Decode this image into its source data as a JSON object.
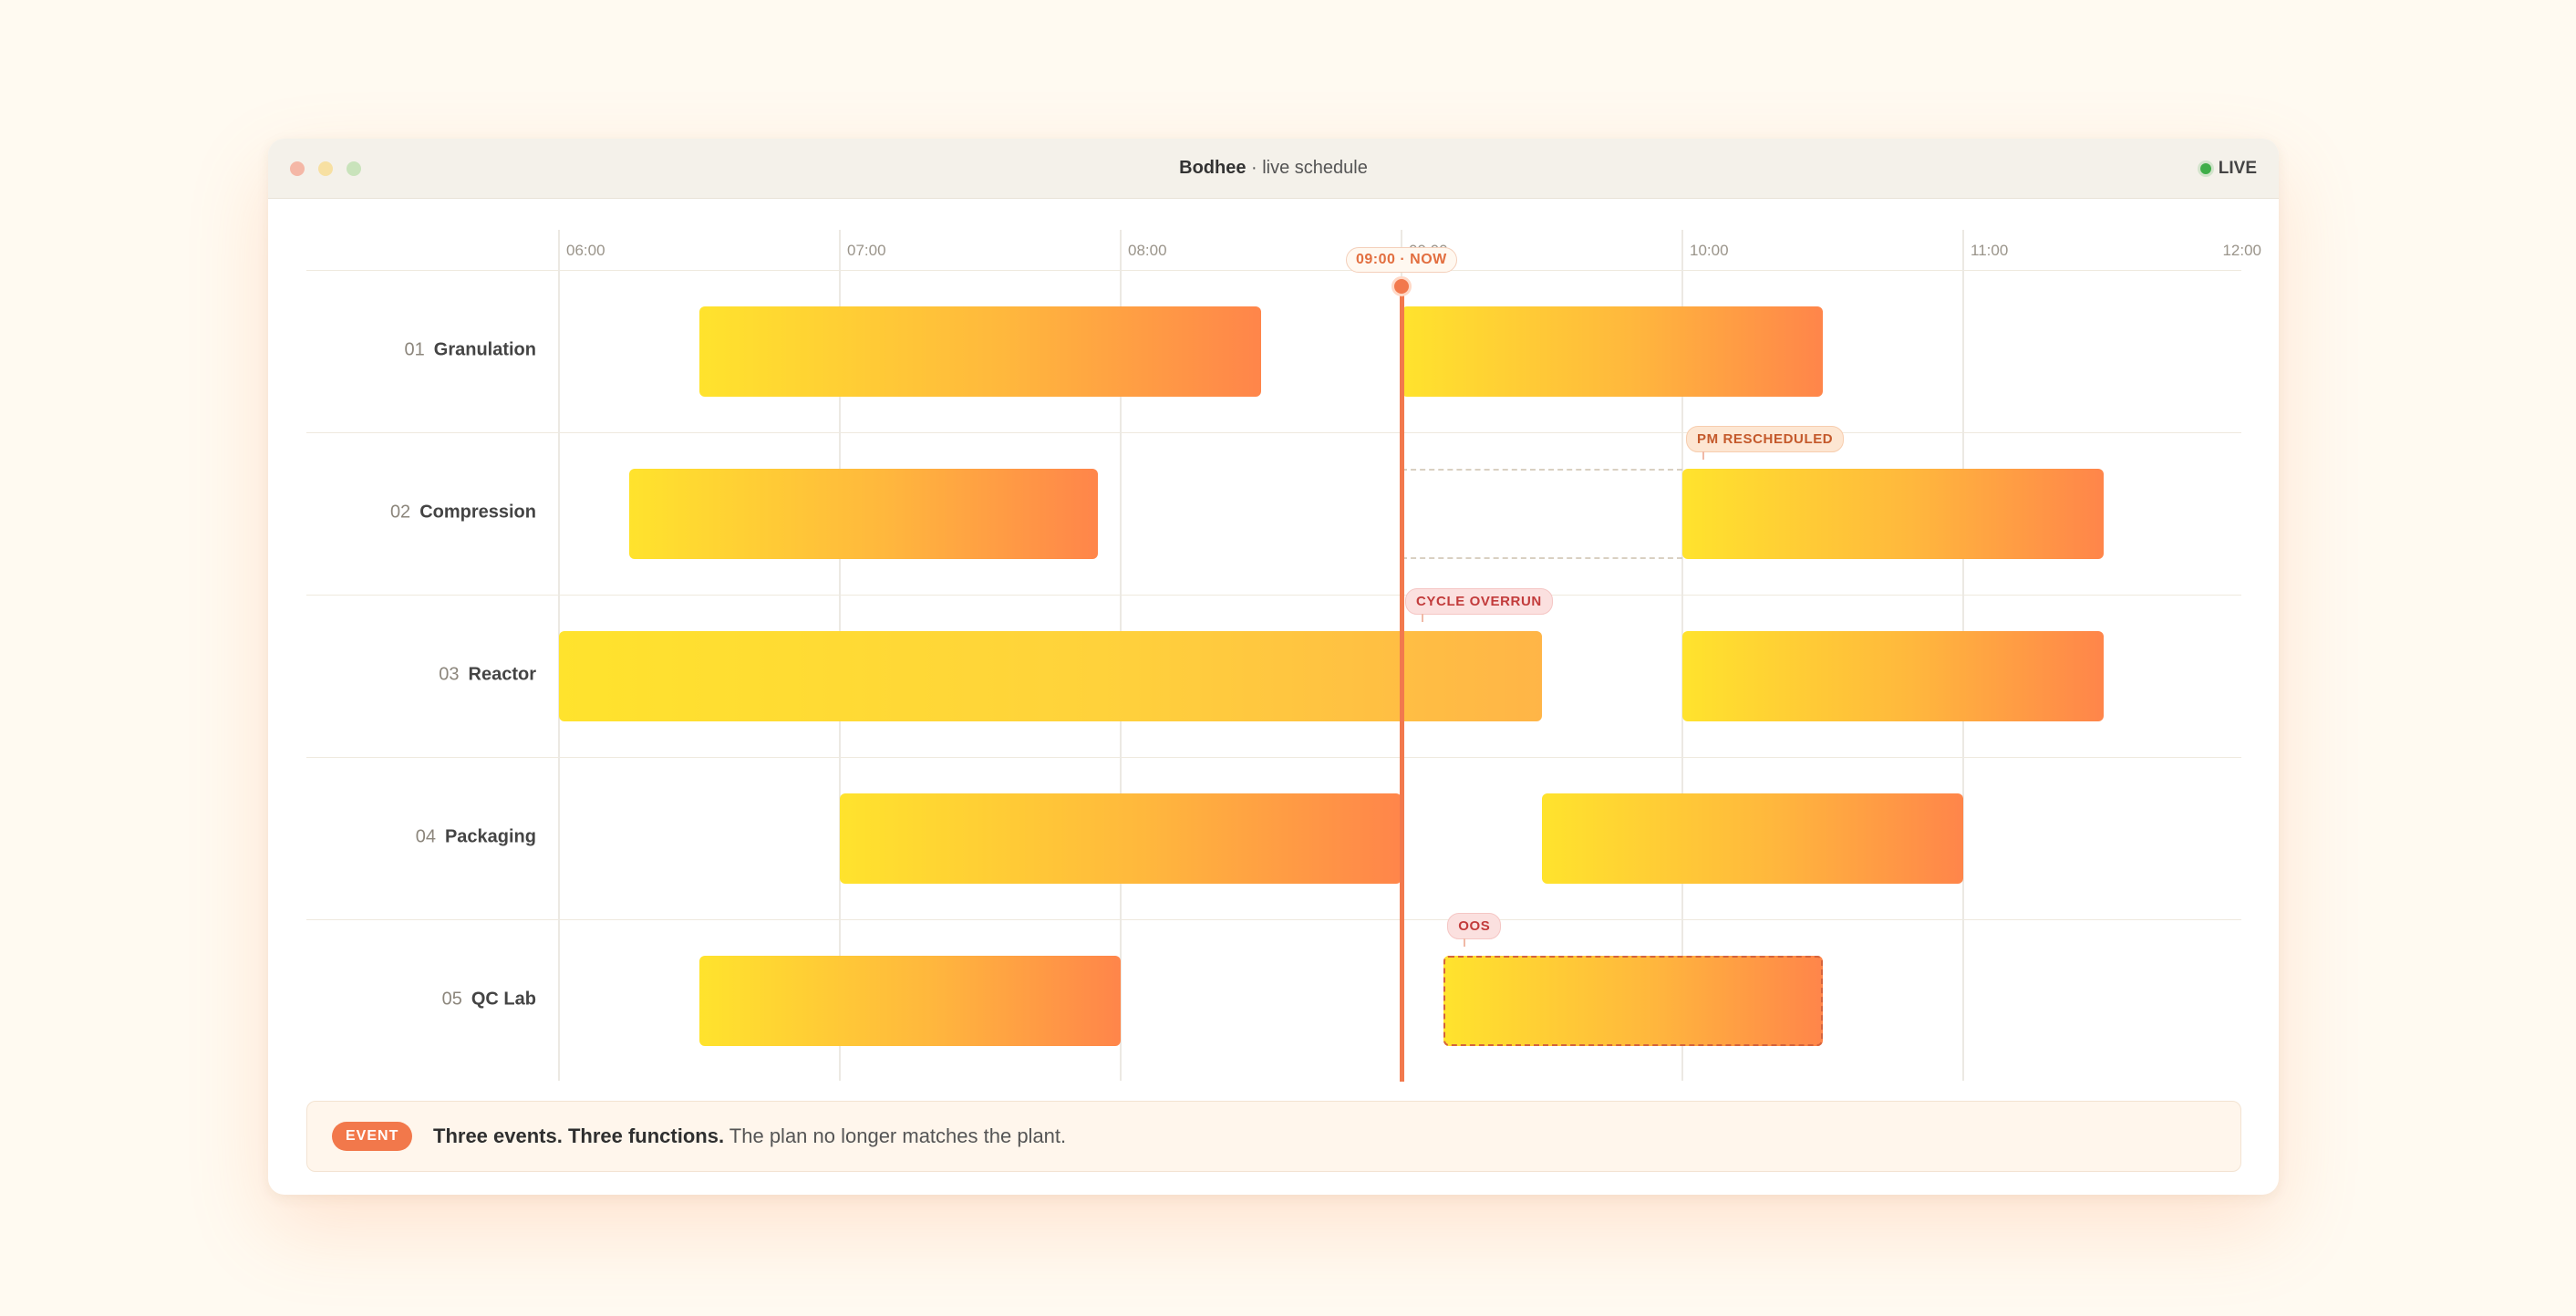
{
  "window": {
    "title_app": "Bodhee",
    "title_rest": " · live schedule",
    "live_label": "LIVE"
  },
  "timeline": {
    "ticks": [
      "06:00",
      "07:00",
      "08:00",
      "09:00",
      "10:00",
      "11:00",
      "12:00"
    ],
    "now_label": "09:00 · NOW",
    "now_hour": 9.0
  },
  "rows": [
    {
      "num": "01",
      "name": "Granulation"
    },
    {
      "num": "02",
      "name": "Compression"
    },
    {
      "num": "03",
      "name": "Reactor"
    },
    {
      "num": "04",
      "name": "Packaging"
    },
    {
      "num": "05",
      "name": "QC Lab"
    }
  ],
  "tasks": [
    {
      "row": 0,
      "start": 6.5,
      "end": 8.5
    },
    {
      "row": 0,
      "start": 9.0,
      "end": 10.5
    },
    {
      "row": 1,
      "start": 6.25,
      "end": 7.92
    },
    {
      "row": 1,
      "start": 10.0,
      "end": 11.5
    },
    {
      "row": 2,
      "start": 6.0,
      "end": 9.5,
      "style": "long"
    },
    {
      "row": 2,
      "start": 10.0,
      "end": 11.5
    },
    {
      "row": 3,
      "start": 7.0,
      "end": 9.0
    },
    {
      "row": 3,
      "start": 9.5,
      "end": 11.0
    },
    {
      "row": 4,
      "start": 6.5,
      "end": 8.0
    },
    {
      "row": 4,
      "start": 9.15,
      "end": 10.5,
      "style": "dashed"
    }
  ],
  "ghosts": [
    {
      "row": 1,
      "start": 9.0,
      "end": 10.0
    }
  ],
  "events": [
    {
      "row": 1,
      "hour": 10.0,
      "label": "PM RESCHEDULED",
      "tone": "orange"
    },
    {
      "row": 2,
      "hour": 9.0,
      "label": "CYCLE OVERRUN",
      "tone": "red"
    },
    {
      "row": 4,
      "hour": 9.15,
      "label": "OOS",
      "tone": "red"
    }
  ],
  "footer": {
    "pill": "EVENT",
    "headline": "Three events. Three functions.",
    "body": " The plan no longer matches the plant."
  },
  "colors": {
    "accent": "#f2794d",
    "bar_start": "#ffe32d",
    "bar_end": "#ff854a",
    "live": "#3fae49"
  }
}
